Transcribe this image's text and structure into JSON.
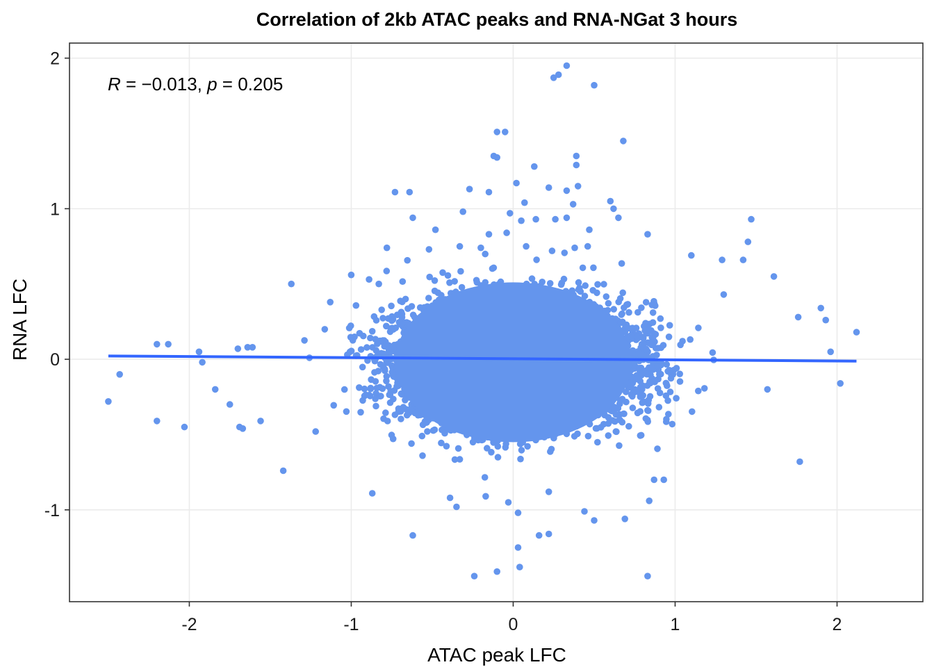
{
  "chart_data": {
    "type": "scatter",
    "title": "Correlation of 2kb ATAC peaks and RNA-NGat 3 hours",
    "xlabel": "ATAC peak LFC",
    "ylabel": "RNA LFC",
    "xlim": [
      -2.74,
      2.53
    ],
    "ylim": [
      -1.61,
      2.1
    ],
    "x_ticks": [
      -2,
      -1,
      0,
      1,
      2
    ],
    "y_ticks": [
      -1,
      0,
      1,
      2
    ],
    "x_tick_labels": [
      "-2",
      "-1",
      "0",
      "1",
      "2"
    ],
    "y_tick_labels": [
      "-1",
      "0",
      "1",
      "2"
    ],
    "grid": true,
    "point_color": "#6495ED",
    "annotation": {
      "r_label": "R",
      "r_value": " = −0.013, ",
      "p_label": "p",
      "p_value": " = 0.205"
    },
    "regression_line": {
      "color": "#3366FF",
      "points": [
        [
          -2.5,
          0.022
        ],
        [
          2.12,
          -0.012
        ]
      ]
    },
    "points": [
      [
        0.33,
        1.95
      ],
      [
        0.25,
        1.87
      ],
      [
        0.28,
        1.89
      ],
      [
        0.5,
        1.82
      ],
      [
        -0.1,
        1.51
      ],
      [
        -0.05,
        1.51
      ],
      [
        0.68,
        1.45
      ],
      [
        -0.12,
        1.35
      ],
      [
        -0.1,
        1.34
      ],
      [
        0.39,
        1.35
      ],
      [
        0.13,
        1.28
      ],
      [
        0.39,
        1.29
      ],
      [
        -0.73,
        1.11
      ],
      [
        -0.64,
        1.11
      ],
      [
        -0.27,
        1.13
      ],
      [
        -0.15,
        1.11
      ],
      [
        0.02,
        1.17
      ],
      [
        0.22,
        1.14
      ],
      [
        0.33,
        1.12
      ],
      [
        0.4,
        1.15
      ],
      [
        0.07,
        1.04
      ],
      [
        0.62,
        1.0
      ],
      [
        0.37,
        1.03
      ],
      [
        0.6,
        1.05
      ],
      [
        -0.31,
        0.98
      ],
      [
        -0.02,
        0.97
      ],
      [
        -0.62,
        0.94
      ],
      [
        0.05,
        0.92
      ],
      [
        0.14,
        0.93
      ],
      [
        0.26,
        0.93
      ],
      [
        0.33,
        0.94
      ],
      [
        0.65,
        0.94
      ],
      [
        1.47,
        0.93
      ],
      [
        -0.15,
        0.83
      ],
      [
        -0.04,
        0.84
      ],
      [
        0.83,
        0.83
      ],
      [
        -0.48,
        0.86
      ],
      [
        0.47,
        0.86
      ],
      [
        -0.78,
        0.74
      ],
      [
        -0.52,
        0.73
      ],
      [
        -0.33,
        0.75
      ],
      [
        -0.2,
        0.74
      ],
      [
        0.24,
        0.72
      ],
      [
        0.08,
        0.75
      ],
      [
        0.46,
        0.75
      ],
      [
        0.38,
        0.74
      ],
      [
        1.45,
        0.78
      ],
      [
        1.1,
        0.69
      ],
      [
        1.42,
        0.66
      ],
      [
        1.29,
        0.66
      ],
      [
        -1.37,
        0.5
      ],
      [
        -1.0,
        0.56
      ],
      [
        -0.89,
        0.53
      ],
      [
        -0.83,
        0.5
      ],
      [
        1.61,
        0.55
      ],
      [
        1.3,
        0.43
      ],
      [
        -2.2,
        0.1
      ],
      [
        -2.13,
        0.1
      ],
      [
        -1.94,
        0.05
      ],
      [
        -1.7,
        0.07
      ],
      [
        -1.64,
        0.08
      ],
      [
        -1.61,
        0.08
      ],
      [
        -1.92,
        -0.02
      ],
      [
        -2.43,
        -0.1
      ],
      [
        -2.5,
        -0.28
      ],
      [
        -2.2,
        -0.41
      ],
      [
        -2.03,
        -0.45
      ],
      [
        -1.84,
        -0.2
      ],
      [
        -1.75,
        -0.3
      ],
      [
        -1.69,
        -0.45
      ],
      [
        -1.67,
        -0.46
      ],
      [
        -1.56,
        -0.41
      ],
      [
        -1.42,
        -0.74
      ],
      [
        -0.87,
        -0.89
      ],
      [
        -1.22,
        -0.48
      ],
      [
        -0.56,
        -0.64
      ],
      [
        1.9,
        0.34
      ],
      [
        1.76,
        0.28
      ],
      [
        1.93,
        0.26
      ],
      [
        2.12,
        0.18
      ],
      [
        1.96,
        0.05
      ],
      [
        2.02,
        -0.16
      ],
      [
        1.77,
        -0.68
      ],
      [
        1.57,
        -0.2
      ],
      [
        -0.62,
        -1.17
      ],
      [
        -0.24,
        -1.44
      ],
      [
        -0.1,
        -1.41
      ],
      [
        0.03,
        -1.25
      ],
      [
        0.04,
        -1.38
      ],
      [
        0.16,
        -1.17
      ],
      [
        0.22,
        -1.16
      ],
      [
        0.03,
        -1.02
      ],
      [
        -0.03,
        -0.95
      ],
      [
        0.44,
        -1.01
      ],
      [
        0.5,
        -1.07
      ],
      [
        0.69,
        -1.06
      ],
      [
        0.84,
        -0.94
      ],
      [
        0.83,
        -1.44
      ],
      [
        0.87,
        -0.8
      ],
      [
        0.93,
        -0.8
      ],
      [
        -0.35,
        -0.98
      ],
      [
        -0.17,
        -0.91
      ],
      [
        -0.39,
        -0.92
      ],
      [
        0.22,
        -0.88
      ]
    ]
  }
}
